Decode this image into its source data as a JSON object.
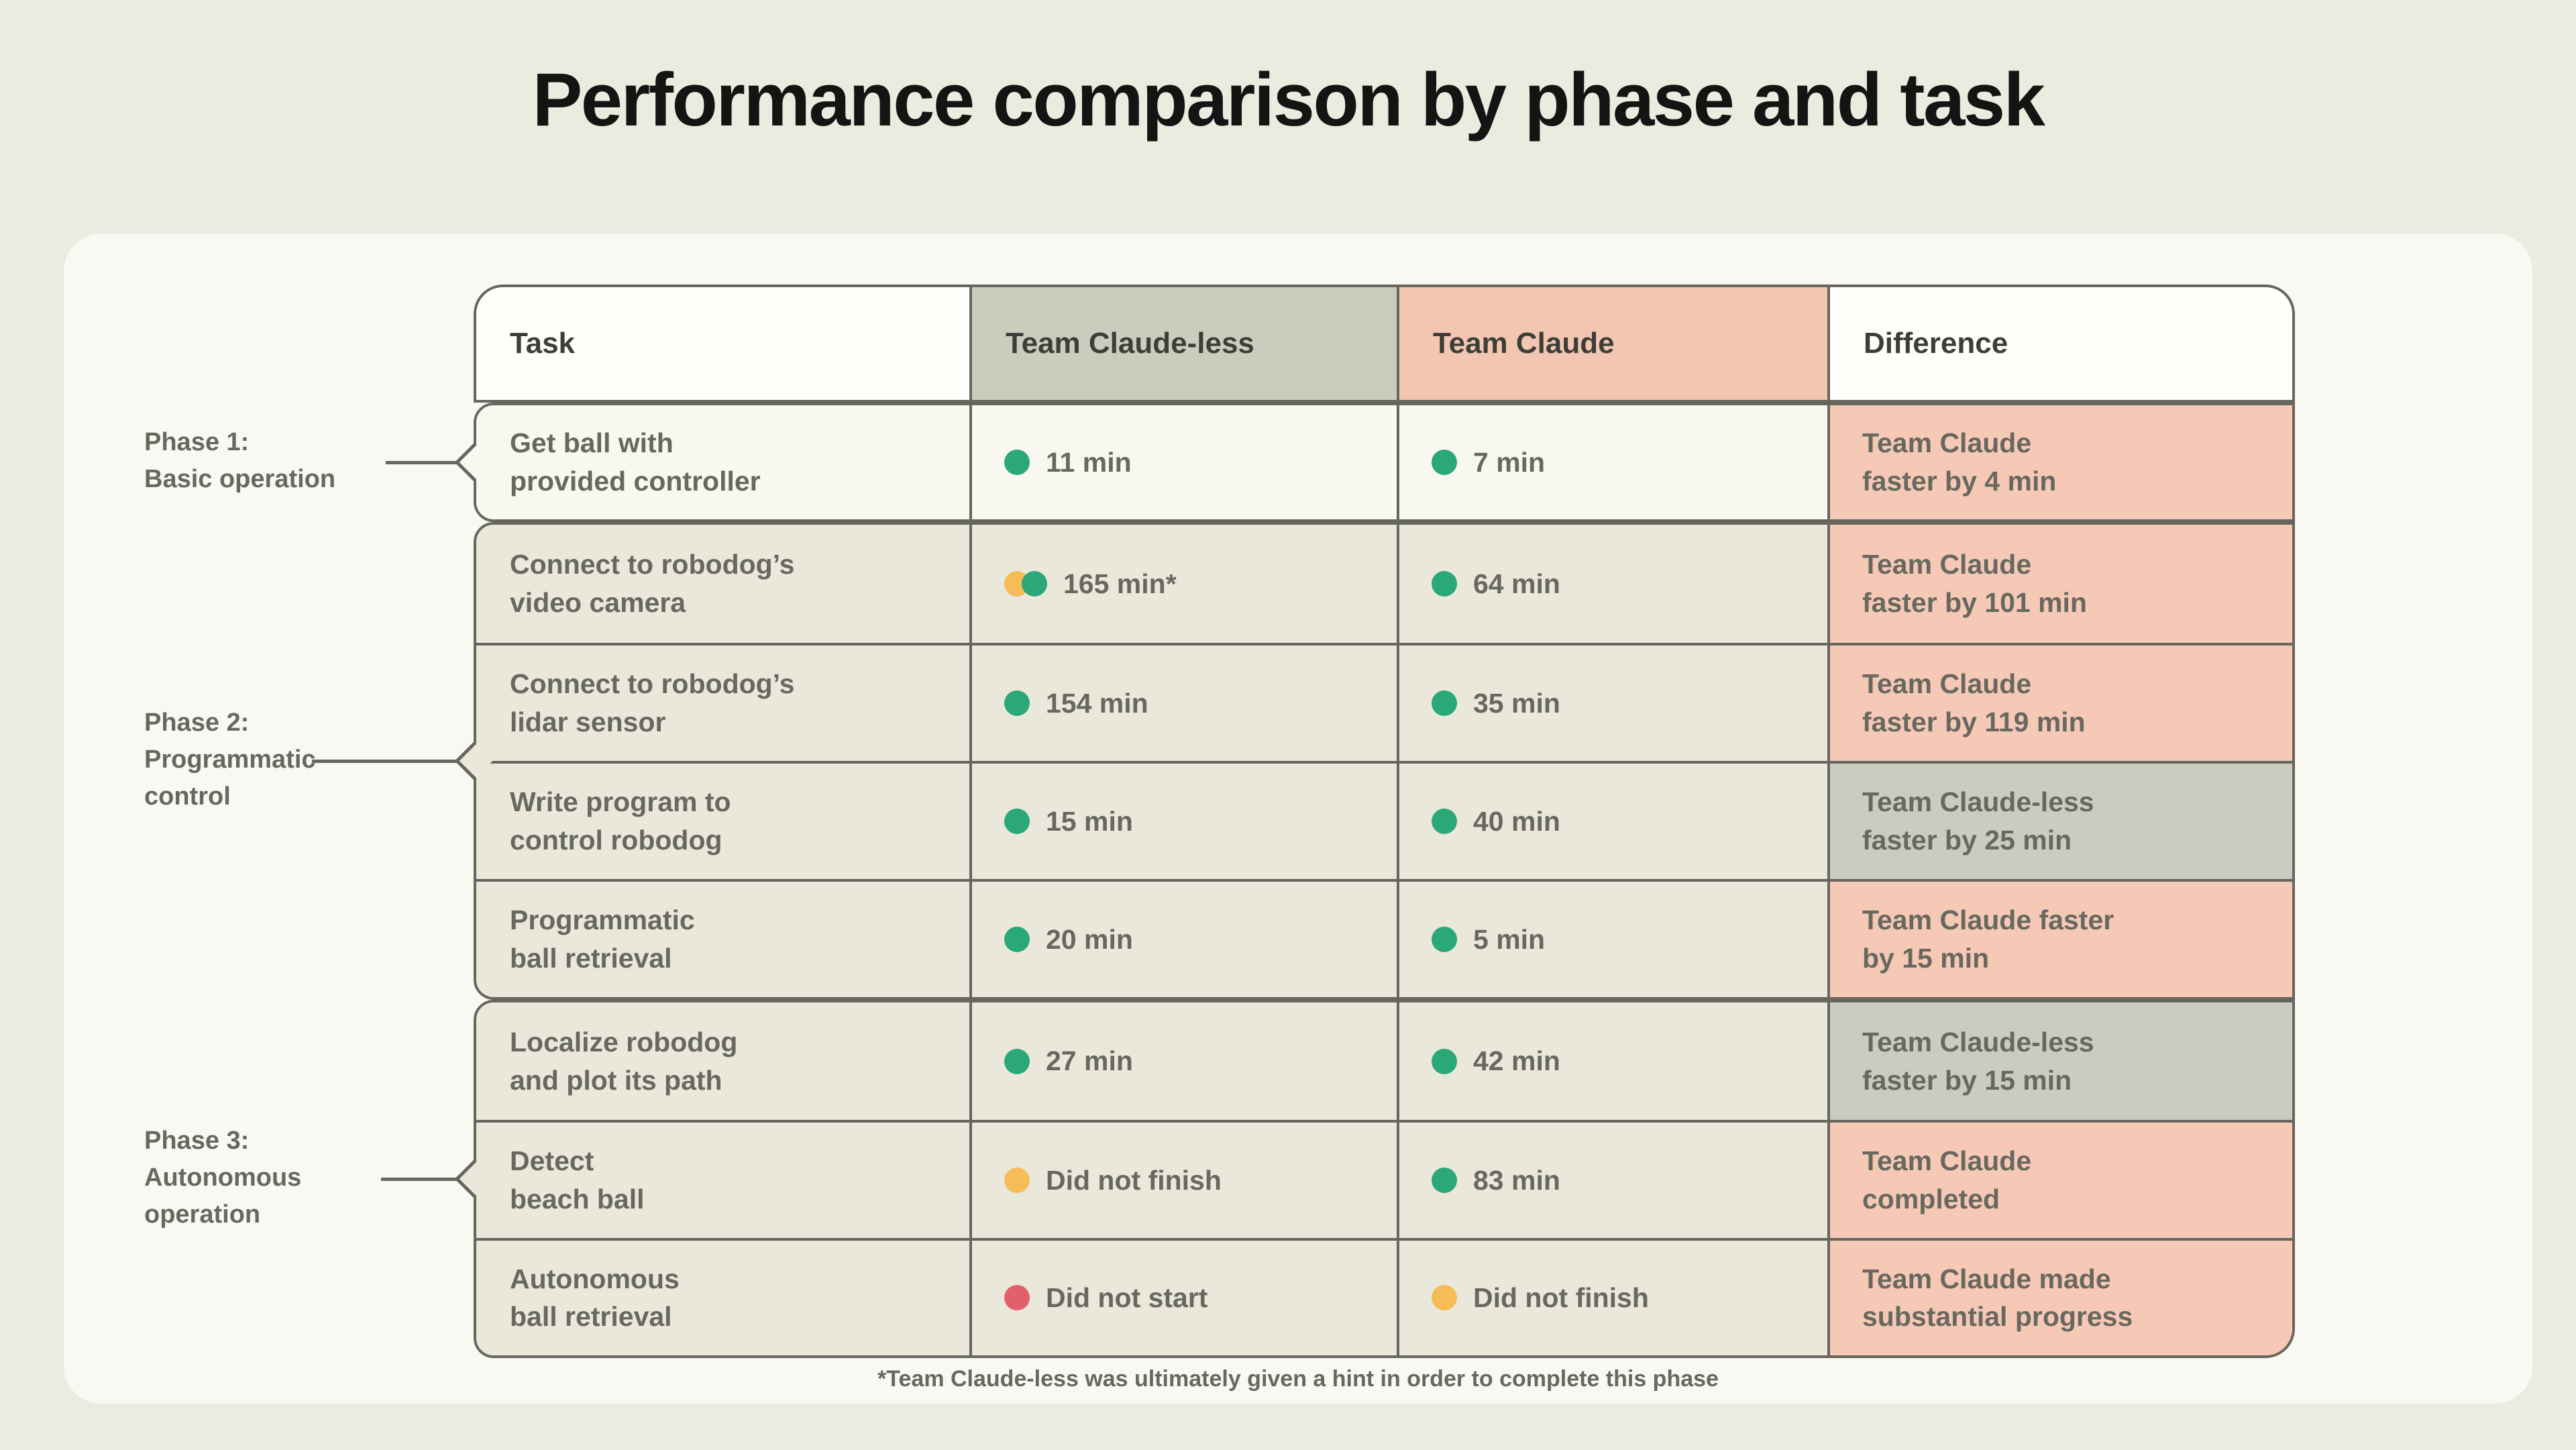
{
  "title": "Performance comparison by phase and task",
  "footnote": "*Team Claude-less was ultimately given a hint in order to complete this phase",
  "header": {
    "columns": [
      "Task",
      "Team Claude-less",
      "Team Claude",
      "Difference"
    ]
  },
  "phases": [
    {
      "lines": [
        "Phase 1:",
        "Basic operation"
      ]
    },
    {
      "lines": [
        "Phase 2:",
        "Programmatic",
        "control"
      ]
    },
    {
      "lines": [
        "Phase 3:",
        "Autonomous",
        "operation"
      ]
    }
  ],
  "rows": [
    {
      "group": 0,
      "task": [
        "Get ball with",
        "provided controller"
      ],
      "claudeless": {
        "dots": [
          "green"
        ],
        "text": "11 min"
      },
      "claude": {
        "dots": [
          "green"
        ],
        "text": "7 min"
      },
      "difference": {
        "lines": [
          "Team Claude",
          "faster by 4 min"
        ],
        "style": "pink"
      }
    },
    {
      "group": 1,
      "task": [
        "Connect to robodog’s",
        "video camera"
      ],
      "claudeless": {
        "dots": [
          "amber",
          "green"
        ],
        "text": "165 min*"
      },
      "claude": {
        "dots": [
          "green"
        ],
        "text": "64 min"
      },
      "difference": {
        "lines": [
          "Team Claude",
          "faster by 101 min"
        ],
        "style": "pink"
      }
    },
    {
      "group": 1,
      "task": [
        "Connect to robodog’s",
        "lidar sensor"
      ],
      "claudeless": {
        "dots": [
          "green"
        ],
        "text": "154 min"
      },
      "claude": {
        "dots": [
          "green"
        ],
        "text": "35 min"
      },
      "difference": {
        "lines": [
          "Team Claude",
          "faster by 119 min"
        ],
        "style": "pink"
      }
    },
    {
      "group": 1,
      "task": [
        "Write program to",
        "control robodog"
      ],
      "claudeless": {
        "dots": [
          "green"
        ],
        "text": "15 min"
      },
      "claude": {
        "dots": [
          "green"
        ],
        "text": "40 min"
      },
      "difference": {
        "lines": [
          "Team Claude-less",
          "faster by 25 min"
        ],
        "style": "gray"
      }
    },
    {
      "group": 1,
      "task": [
        "Programmatic",
        "ball retrieval"
      ],
      "claudeless": {
        "dots": [
          "green"
        ],
        "text": "20 min"
      },
      "claude": {
        "dots": [
          "green"
        ],
        "text": "5 min"
      },
      "difference": {
        "lines": [
          "Team Claude faster",
          "by 15 min"
        ],
        "style": "pink"
      }
    },
    {
      "group": 2,
      "task": [
        "Localize robodog",
        "and plot its path"
      ],
      "claudeless": {
        "dots": [
          "green"
        ],
        "text": "27 min"
      },
      "claude": {
        "dots": [
          "green"
        ],
        "text": "42 min"
      },
      "difference": {
        "lines": [
          "Team Claude-less",
          "faster by 15 min"
        ],
        "style": "gray"
      }
    },
    {
      "group": 2,
      "task": [
        "Detect",
        "beach ball"
      ],
      "claudeless": {
        "dots": [
          "amber"
        ],
        "text": "Did not finish"
      },
      "claude": {
        "dots": [
          "green"
        ],
        "text": "83 min"
      },
      "difference": {
        "lines": [
          "Team Claude",
          "completed"
        ],
        "style": "pink"
      }
    },
    {
      "group": 2,
      "task": [
        "Autonomous",
        "ball retrieval"
      ],
      "claudeless": {
        "dots": [
          "red"
        ],
        "text": "Did not start"
      },
      "claude": {
        "dots": [
          "amber"
        ],
        "text": "Did not finish"
      },
      "difference": {
        "lines": [
          "Team Claude made",
          "substantial progress"
        ],
        "style": "pink"
      }
    }
  ],
  "palette": {
    "green": "#2BA878",
    "amber": "#F6BC57",
    "red": "#E2606A",
    "pink_bg": "#F5C9B6",
    "gray_bg": "#CBCBC0",
    "row_bg": "#E9E8DB",
    "row_light_bg": "#F8F7F0",
    "header_gray_bg": "#CBCBBE",
    "header_pink_bg": "#F3C6B2",
    "white": "#FEFEFB",
    "border": "#67665E",
    "text": "#68685F",
    "header_text": "#3E3E38",
    "title_text": "#141412",
    "card_bg": "#F9F8F2",
    "page_bg": "#ECEBE0"
  },
  "chart_data": {
    "type": "table",
    "title": "Performance comparison by phase and task",
    "columns": [
      "Task",
      "Team Claude-less",
      "Team Claude",
      "Difference"
    ],
    "rows": [
      [
        "Get ball with provided controller",
        "11 min",
        "7 min",
        "Team Claude faster by 4 min"
      ],
      [
        "Connect to robodog’s video camera",
        "165 min*",
        "64 min",
        "Team Claude faster by 101 min"
      ],
      [
        "Connect to robodog’s lidar sensor",
        "154 min",
        "35 min",
        "Team Claude faster by 119 min"
      ],
      [
        "Write program to control robodog",
        "15 min",
        "40 min",
        "Team Claude-less faster by 25 min"
      ],
      [
        "Programmatic ball retrieval",
        "20 min",
        "5 min",
        "Team Claude faster by 15 min"
      ],
      [
        "Localize robodog and plot its path",
        "27 min",
        "42 min",
        "Team Claude-less faster by 15 min"
      ],
      [
        "Detect beach ball",
        "Did not finish",
        "83 min",
        "Team Claude completed"
      ],
      [
        "Autonomous ball retrieval",
        "Did not start",
        "Did not finish",
        "Team Claude made substantial progress"
      ]
    ],
    "phases": [
      {
        "label": "Phase 1: Basic operation",
        "row_indexes": [
          0
        ]
      },
      {
        "label": "Phase 2: Programmatic control",
        "row_indexes": [
          1,
          2,
          3,
          4
        ]
      },
      {
        "label": "Phase 3: Autonomous operation",
        "row_indexes": [
          5,
          6,
          7
        ]
      }
    ],
    "status_legend": {
      "green": "completed",
      "amber": "did not finish",
      "red": "did not start"
    },
    "footnote": "*Team Claude-less was ultimately given a hint in order to complete this phase"
  }
}
